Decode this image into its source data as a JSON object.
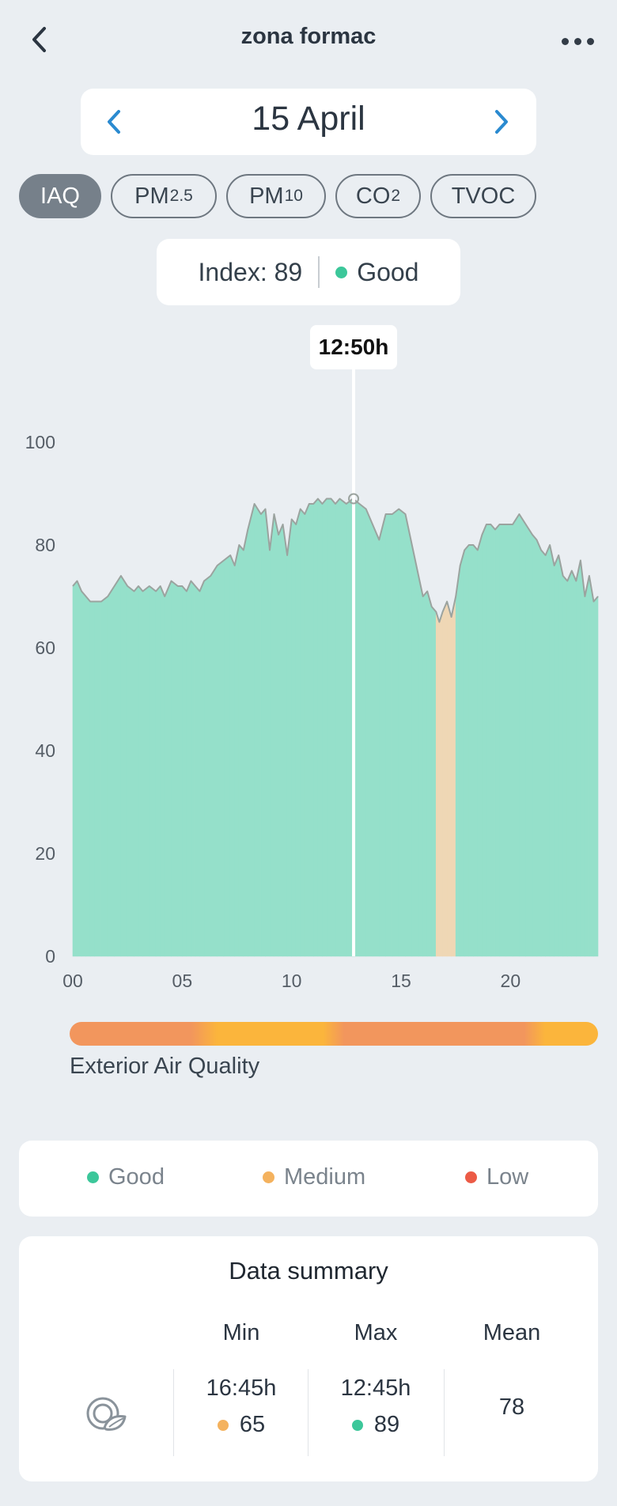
{
  "header": {
    "title": "zona formac"
  },
  "date": {
    "label": "15 April"
  },
  "metric_tabs": [
    {
      "label": "IAQ",
      "sub": "",
      "active": true
    },
    {
      "label": "PM",
      "sub": "2.5",
      "active": false
    },
    {
      "label": "PM",
      "sub": "10",
      "active": false
    },
    {
      "label": "CO",
      "sub": "2",
      "active": false
    },
    {
      "label": "TVOC",
      "sub": "",
      "active": false
    }
  ],
  "index_card": {
    "label": "Index: 89",
    "status": "Good",
    "status_color": "#3cc79a"
  },
  "cursor": {
    "time_label": "12:50h",
    "hour": 12.833
  },
  "colors": {
    "good": "#3cc79a",
    "good_fill": "#95e0ca",
    "medium": "#f4b25e",
    "medium_fill": "#efd7b5",
    "low": "#ec5b46",
    "line": "#9ba39f"
  },
  "chart_data": {
    "type": "area",
    "xlabel": "",
    "ylabel": "",
    "xlim": [
      0,
      24
    ],
    "ylim": [
      0,
      100
    ],
    "x_ticks": [
      "00",
      "05",
      "10",
      "15",
      "20"
    ],
    "x_tick_values": [
      0,
      5,
      10,
      15,
      20
    ],
    "y_ticks": [
      0,
      20,
      40,
      60,
      80,
      100
    ],
    "grid": false,
    "series": [
      {
        "x": [
          0,
          0.2,
          0.4,
          0.6,
          0.8,
          1.0,
          1.3,
          1.6,
          1.9,
          2.2,
          2.5,
          2.8,
          3.0,
          3.2,
          3.5,
          3.8,
          4.0,
          4.2,
          4.5,
          4.8,
          5.0,
          5.2,
          5.4,
          5.6,
          5.8,
          6.0,
          6.3,
          6.6,
          6.9,
          7.2,
          7.4,
          7.6,
          7.8,
          8.0,
          8.3,
          8.6,
          8.8,
          9.0,
          9.2,
          9.4,
          9.6,
          9.8,
          10.0,
          10.2,
          10.4,
          10.6,
          10.8,
          11.0,
          11.2,
          11.4,
          11.6,
          11.8,
          12.0,
          12.2,
          12.5,
          12.8,
          13.1,
          13.4,
          13.7,
          14.0,
          14.3,
          14.6,
          14.9,
          15.2,
          15.5,
          15.8,
          16.0,
          16.2,
          16.4,
          16.6,
          16.75,
          16.9,
          17.1,
          17.3,
          17.5,
          17.7,
          17.9,
          18.1,
          18.3,
          18.5,
          18.7,
          18.9,
          19.1,
          19.3,
          19.5,
          19.8,
          20.1,
          20.4,
          20.7,
          21.0,
          21.2,
          21.4,
          21.6,
          21.8,
          22.0,
          22.2,
          22.4,
          22.6,
          22.8,
          23.0,
          23.2,
          23.4,
          23.6,
          23.8,
          24.0
        ],
        "y": [
          72,
          73,
          71,
          70,
          69,
          69,
          69,
          70,
          72,
          74,
          72,
          71,
          72,
          71,
          72,
          71,
          72,
          70,
          73,
          72,
          72,
          71,
          73,
          72,
          71,
          73,
          74,
          76,
          77,
          78,
          76,
          80,
          79,
          83,
          88,
          86,
          87,
          79,
          86,
          82,
          84,
          78,
          85,
          84,
          87,
          86,
          88,
          88,
          89,
          88,
          89,
          89,
          88,
          89,
          88,
          89,
          88,
          87,
          84,
          81,
          86,
          86,
          87,
          86,
          80,
          74,
          70,
          71,
          68,
          67,
          65,
          67,
          69,
          66,
          70,
          76,
          79,
          80,
          80,
          79,
          82,
          84,
          84,
          83,
          84,
          84,
          84,
          86,
          84,
          82,
          81,
          79,
          78,
          80,
          76,
          78,
          74,
          73,
          75,
          73,
          77,
          70,
          74,
          69,
          70
        ],
        "rating": [
          "good",
          "good",
          "good",
          "good",
          "good",
          "good",
          "good",
          "good",
          "good",
          "good",
          "good",
          "good",
          "good",
          "good",
          "good",
          "good",
          "good",
          "good",
          "good",
          "good",
          "good",
          "good",
          "good",
          "good",
          "good",
          "good",
          "good",
          "good",
          "good",
          "good",
          "good",
          "good",
          "good",
          "good",
          "good",
          "good",
          "good",
          "good",
          "good",
          "good",
          "good",
          "good",
          "good",
          "good",
          "good",
          "good",
          "good",
          "good",
          "good",
          "good",
          "good",
          "good",
          "good",
          "good",
          "good",
          "good",
          "good",
          "good",
          "good",
          "good",
          "good",
          "good",
          "good",
          "good",
          "good",
          "good",
          "good",
          "good",
          "good",
          "medium",
          "medium",
          "medium",
          "medium",
          "medium",
          "medium",
          "good",
          "good",
          "good",
          "good",
          "good",
          "good",
          "good",
          "good",
          "good",
          "good",
          "good",
          "good",
          "good",
          "good",
          "good",
          "good",
          "good",
          "good",
          "good",
          "good",
          "good",
          "good",
          "good",
          "good",
          "good",
          "good",
          "good",
          "good",
          "good",
          "good"
        ]
      }
    ]
  },
  "exterior": {
    "label": "Exterior Air Quality"
  },
  "legend": [
    {
      "label": "Good",
      "color": "#3cc79a"
    },
    {
      "label": "Medium",
      "color": "#f4b25e"
    },
    {
      "label": "Low",
      "color": "#ec5b46"
    }
  ],
  "summary": {
    "title": "Data summary",
    "icon": "air-quality-leaf-icon",
    "min": {
      "header": "Min",
      "time": "16:45h",
      "value": "65",
      "color": "#f4b25e"
    },
    "max": {
      "header": "Max",
      "time": "12:45h",
      "value": "89",
      "color": "#3cc79a"
    },
    "mean": {
      "header": "Mean",
      "value": "78"
    }
  }
}
